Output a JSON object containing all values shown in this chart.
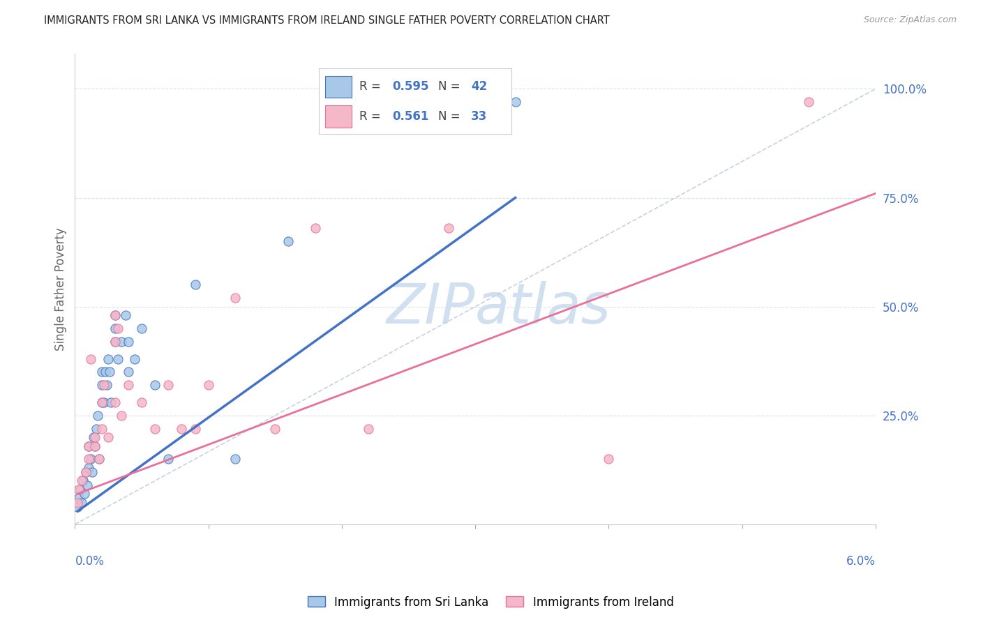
{
  "title": "IMMIGRANTS FROM SRI LANKA VS IMMIGRANTS FROM IRELAND SINGLE FATHER POVERTY CORRELATION CHART",
  "source": "Source: ZipAtlas.com",
  "ylabel": "Single Father Poverty",
  "legend_label1": "Immigrants from Sri Lanka",
  "legend_label2": "Immigrants from Ireland",
  "R1": "0.595",
  "N1": "42",
  "R2": "0.561",
  "N2": "33",
  "color_blue": "#a8c8e8",
  "color_pink": "#f5b8c8",
  "line_blue": "#4472c4",
  "line_pink": "#e8709a",
  "watermark_color": "#c8d8f0",
  "xlim": [
    0.0,
    0.06
  ],
  "ylim": [
    0.0,
    1.08
  ],
  "sri_lanka_x": [
    0.0002,
    0.0003,
    0.0004,
    0.0005,
    0.0006,
    0.0007,
    0.0008,
    0.0009,
    0.001,
    0.001,
    0.0012,
    0.0013,
    0.0014,
    0.0015,
    0.0016,
    0.0017,
    0.0018,
    0.002,
    0.002,
    0.002,
    0.0022,
    0.0023,
    0.0024,
    0.0025,
    0.0026,
    0.0027,
    0.003,
    0.003,
    0.003,
    0.0032,
    0.0035,
    0.0038,
    0.004,
    0.004,
    0.0045,
    0.005,
    0.006,
    0.007,
    0.009,
    0.012,
    0.016,
    0.033
  ],
  "sri_lanka_y": [
    0.04,
    0.06,
    0.08,
    0.05,
    0.1,
    0.07,
    0.12,
    0.09,
    0.13,
    0.18,
    0.15,
    0.12,
    0.2,
    0.18,
    0.22,
    0.25,
    0.15,
    0.28,
    0.35,
    0.32,
    0.28,
    0.35,
    0.32,
    0.38,
    0.35,
    0.28,
    0.42,
    0.48,
    0.45,
    0.38,
    0.42,
    0.48,
    0.35,
    0.42,
    0.38,
    0.45,
    0.32,
    0.15,
    0.55,
    0.15,
    0.65,
    0.97
  ],
  "ireland_x": [
    0.0002,
    0.0003,
    0.0005,
    0.0008,
    0.001,
    0.001,
    0.0012,
    0.0015,
    0.0015,
    0.0018,
    0.002,
    0.002,
    0.0022,
    0.0025,
    0.003,
    0.003,
    0.003,
    0.0032,
    0.0035,
    0.004,
    0.005,
    0.006,
    0.007,
    0.008,
    0.009,
    0.01,
    0.012,
    0.015,
    0.018,
    0.022,
    0.028,
    0.04,
    0.055
  ],
  "ireland_y": [
    0.05,
    0.08,
    0.1,
    0.12,
    0.15,
    0.18,
    0.38,
    0.18,
    0.2,
    0.15,
    0.22,
    0.28,
    0.32,
    0.2,
    0.28,
    0.42,
    0.48,
    0.45,
    0.25,
    0.32,
    0.28,
    0.22,
    0.32,
    0.22,
    0.22,
    0.32,
    0.52,
    0.22,
    0.68,
    0.22,
    0.68,
    0.15,
    0.97
  ],
  "ref_line_x": [
    0.0,
    0.06
  ],
  "ref_line_y": [
    0.0,
    1.0
  ],
  "blue_trend_x0": 0.0002,
  "blue_trend_x1": 0.033,
  "blue_trend_y0": 0.03,
  "blue_trend_y1": 0.75,
  "pink_trend_x0": 0.0002,
  "pink_trend_x1": 0.06,
  "pink_trend_y0": 0.07,
  "pink_trend_y1": 0.76
}
